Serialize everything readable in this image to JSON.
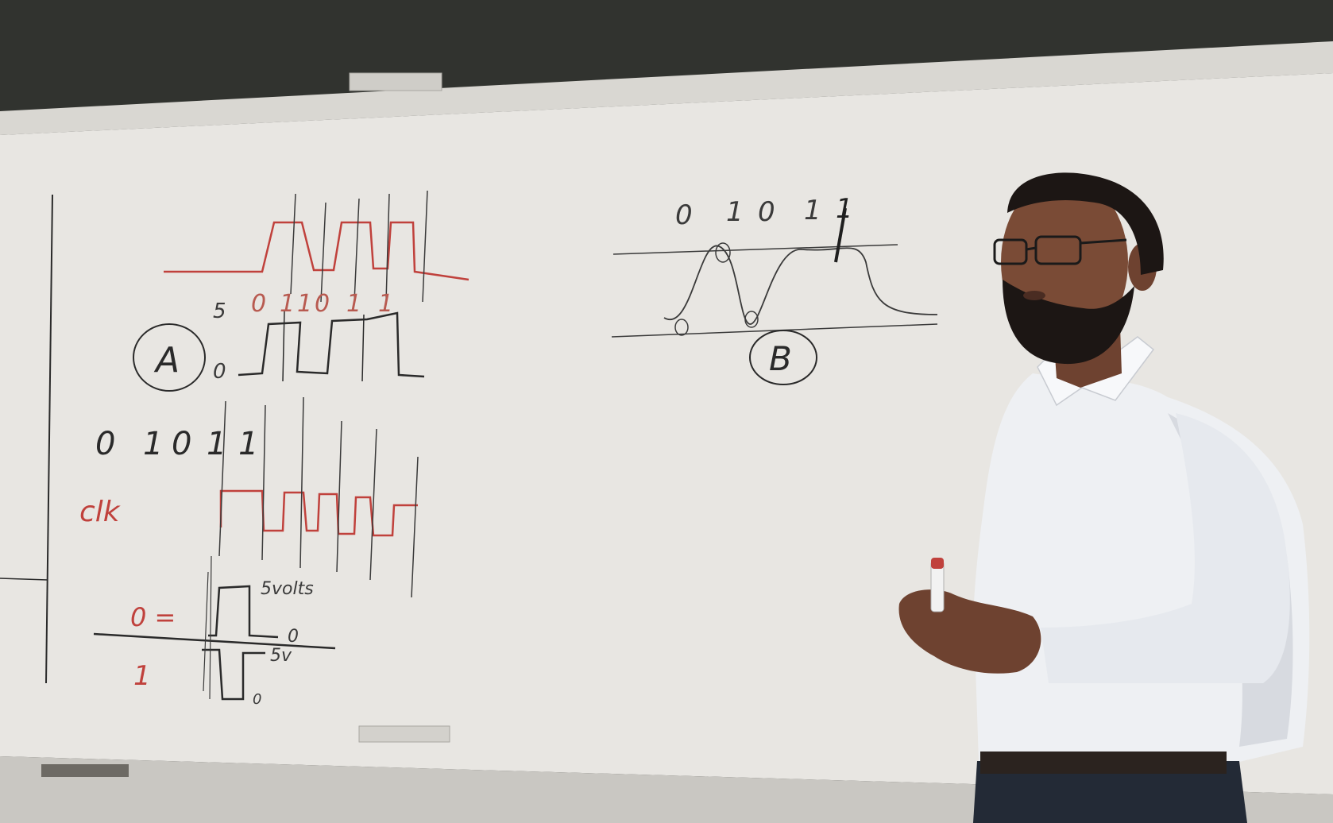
{
  "colors": {
    "chalkboard": "#2c2e2b",
    "whiteboard": "#e8e6e2",
    "frame": "#d9d7d2",
    "marker_black": "#2a2a2a",
    "marker_red": "#c0413c",
    "shirt": "#f1f1f3",
    "skin": "#7a4b36",
    "beard": "#1c1614",
    "pants": "#232a36"
  },
  "board": {
    "diagram_a": {
      "top_bits": [
        "0",
        "1",
        "1",
        "0",
        "1",
        "1"
      ],
      "level_high": "5",
      "level_low": "0",
      "label": "A"
    },
    "diagram_b": {
      "bits": [
        "0",
        "1",
        "0",
        "1",
        "1"
      ],
      "label": "B"
    },
    "sequence": [
      "0",
      "1",
      "0",
      "1",
      "1"
    ],
    "clock_label": "clk",
    "encoding": {
      "zero_label": "0 =",
      "one_label": "1",
      "high_note": "5volts",
      "zero_marker": "0",
      "five_v": "5v",
      "low_marker": "0"
    }
  },
  "icons": {
    "marker": "red-marker-icon"
  }
}
